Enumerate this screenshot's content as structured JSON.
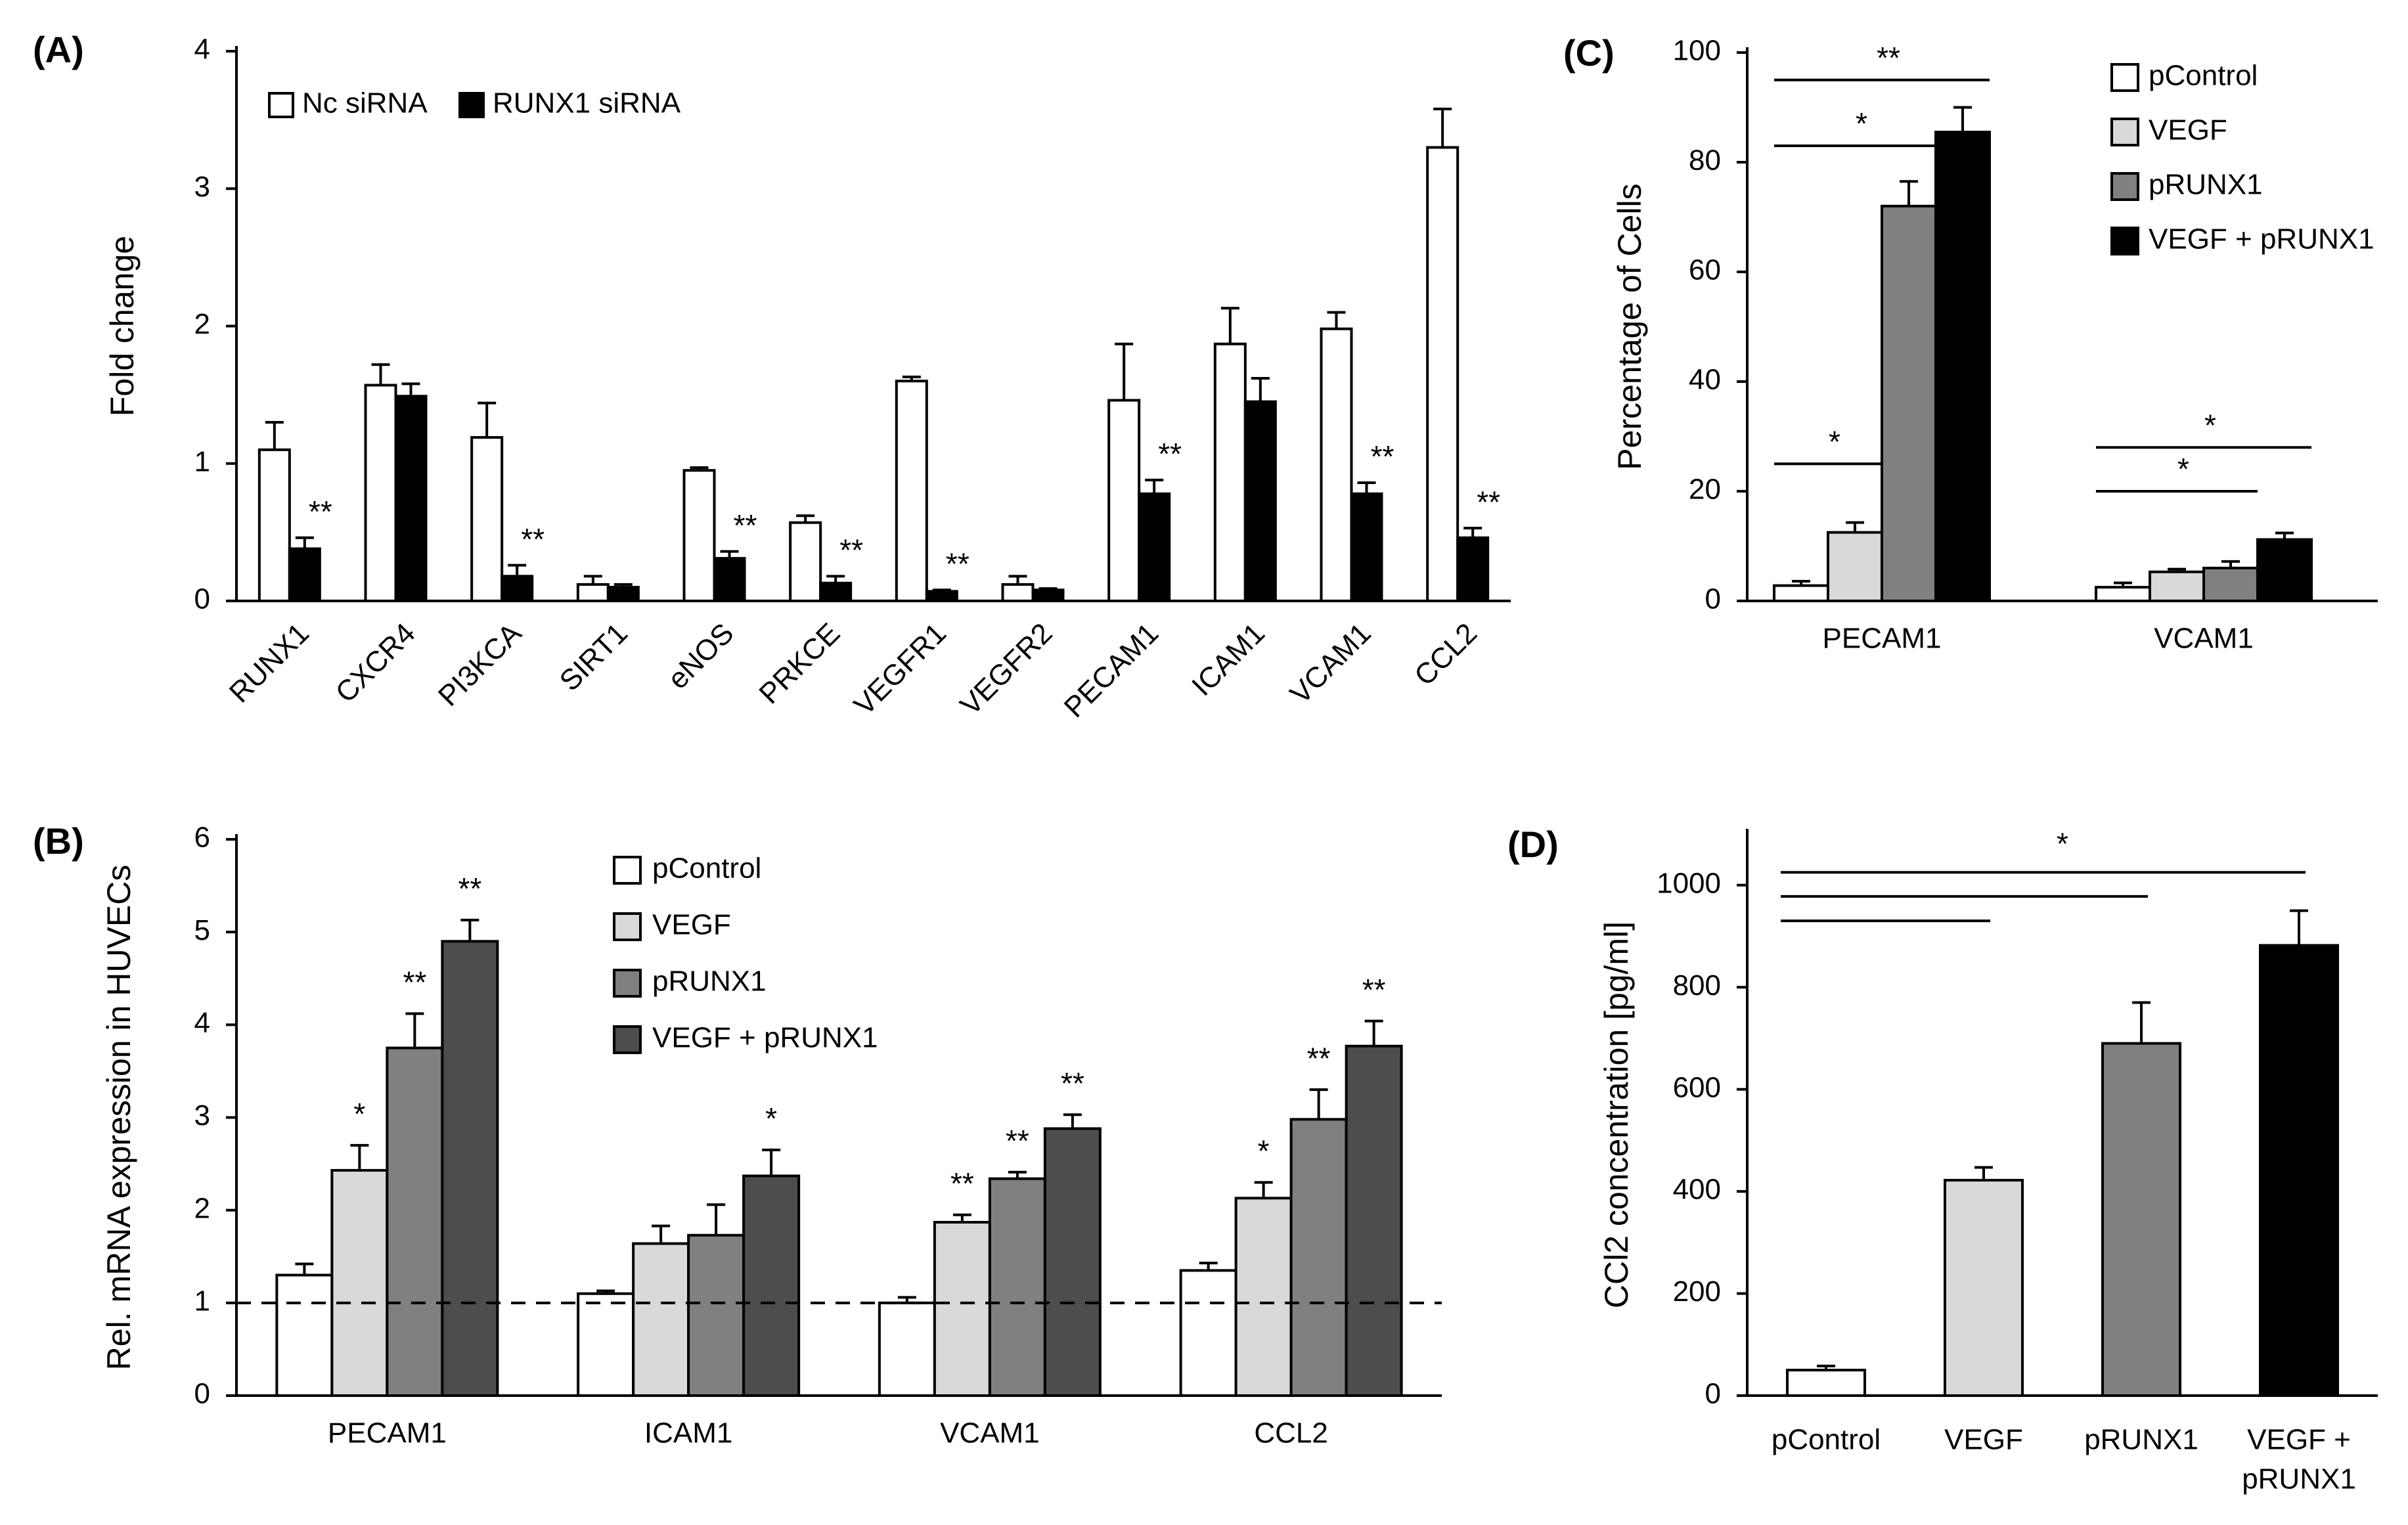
{
  "chart_data": [
    {
      "panel": "(A)",
      "type": "bar",
      "ylabel": "Fold change",
      "ylim": [
        0,
        4
      ],
      "yticks": [
        0,
        1,
        2,
        3,
        4
      ],
      "legend_placement": "top-left",
      "grid": false,
      "categories": [
        "RUNX1",
        "CXCR4",
        "PI3KCA",
        "SIRT1",
        "eNOS",
        "PRKCE",
        "VEGFR1",
        "VEGFR2",
        "PECAM1",
        "ICAM1",
        "VCAM1",
        "CCL2"
      ],
      "series": [
        {
          "name": "Nc siRNA",
          "color": "#ffffff",
          "values": [
            1.1,
            1.57,
            1.19,
            0.12,
            0.95,
            0.57,
            1.6,
            0.12,
            1.46,
            1.87,
            1.98,
            3.3
          ],
          "errors": [
            0.2,
            0.15,
            0.25,
            0.06,
            0.02,
            0.05,
            0.03,
            0.06,
            0.41,
            0.26,
            0.12,
            0.28
          ]
        },
        {
          "name": "RUNX1 siRNA",
          "color": "#000000",
          "values": [
            0.38,
            1.49,
            0.18,
            0.1,
            0.31,
            0.13,
            0.07,
            0.08,
            0.78,
            1.45,
            0.78,
            0.46
          ],
          "errors": [
            0.08,
            0.09,
            0.08,
            0.02,
            0.05,
            0.05,
            0.01,
            0.01,
            0.1,
            0.17,
            0.08,
            0.07
          ]
        }
      ],
      "annotations": [
        {
          "category": "RUNX1",
          "series": 1,
          "text": "**"
        },
        {
          "category": "PI3KCA",
          "series": 1,
          "text": "**"
        },
        {
          "category": "eNOS",
          "series": 1,
          "text": "**"
        },
        {
          "category": "PRKCE",
          "series": 1,
          "text": "**"
        },
        {
          "category": "VEGFR1",
          "series": 1,
          "text": "**"
        },
        {
          "category": "PECAM1",
          "series": 1,
          "text": "**"
        },
        {
          "category": "VCAM1",
          "series": 1,
          "text": "**"
        },
        {
          "category": "CCL2",
          "series": 1,
          "text": "**"
        }
      ]
    },
    {
      "panel": "(B)",
      "type": "bar",
      "ylabel": "Rel. mRNA expression in HUVECs",
      "ylim": [
        0,
        6
      ],
      "yticks": [
        0,
        1,
        2,
        3,
        4,
        5,
        6
      ],
      "legend_placement": "top-center",
      "grid": false,
      "reference_line": 1,
      "categories": [
        "PECAM1",
        "ICAM1",
        "VCAM1",
        "CCL2"
      ],
      "series": [
        {
          "name": "pControl",
          "color": "#ffffff",
          "values": [
            1.3,
            1.1,
            1.0,
            1.35
          ],
          "errors": [
            0.12,
            0.03,
            0.06,
            0.08
          ]
        },
        {
          "name": "VEGF",
          "color": "#d9d9d9",
          "values": [
            2.43,
            1.64,
            1.87,
            2.13
          ],
          "errors": [
            0.27,
            0.19,
            0.08,
            0.17
          ]
        },
        {
          "name": "pRUNX1",
          "color": "#808080",
          "values": [
            3.75,
            1.73,
            2.34,
            2.98
          ],
          "errors": [
            0.37,
            0.33,
            0.07,
            0.32
          ]
        },
        {
          "name": "VEGF + pRUNX1",
          "color": "#4d4d4d",
          "values": [
            4.9,
            2.37,
            2.88,
            3.77
          ],
          "errors": [
            0.23,
            0.28,
            0.15,
            0.27
          ]
        }
      ],
      "annotations": [
        {
          "category": "PECAM1",
          "series": 1,
          "text": "*"
        },
        {
          "category": "PECAM1",
          "series": 2,
          "text": "**"
        },
        {
          "category": "PECAM1",
          "series": 3,
          "text": "**"
        },
        {
          "category": "ICAM1",
          "series": 3,
          "text": "*"
        },
        {
          "category": "VCAM1",
          "series": 1,
          "text": "**"
        },
        {
          "category": "VCAM1",
          "series": 2,
          "text": "**"
        },
        {
          "category": "VCAM1",
          "series": 3,
          "text": "**"
        },
        {
          "category": "CCL2",
          "series": 1,
          "text": "*"
        },
        {
          "category": "CCL2",
          "series": 2,
          "text": "**"
        },
        {
          "category": "CCL2",
          "series": 3,
          "text": "**"
        }
      ]
    },
    {
      "panel": "(C)",
      "type": "bar",
      "ylabel": "Percentage of Cells",
      "ylim": [
        0,
        100
      ],
      "yticks": [
        0,
        20,
        40,
        60,
        80,
        100
      ],
      "legend_placement": "top-right",
      "grid": false,
      "categories": [
        "PECAM1",
        "VCAM1"
      ],
      "series": [
        {
          "name": "pControl",
          "color": "#ffffff",
          "values": [
            2.8,
            2.5
          ],
          "errors": [
            0.8,
            0.8
          ]
        },
        {
          "name": "VEGF",
          "color": "#d9d9d9",
          "values": [
            12.5,
            5.3
          ],
          "errors": [
            1.8,
            0.5
          ]
        },
        {
          "name": "pRUNX1",
          "color": "#808080",
          "values": [
            72,
            6
          ],
          "errors": [
            4.5,
            1.2
          ]
        },
        {
          "name": "VEGF + pRUNX1",
          "color": "#000000",
          "values": [
            85.5,
            11.2
          ],
          "errors": [
            4.5,
            1.2
          ]
        }
      ],
      "significance": [
        {
          "group": "PECAM1",
          "from": 0,
          "to": 1,
          "text": "*",
          "level": 25
        },
        {
          "group": "PECAM1",
          "from": 0,
          "to": 2,
          "text": "*",
          "level": 83
        },
        {
          "group": "PECAM1",
          "from": 0,
          "to": 3,
          "text": "**",
          "level": 95
        },
        {
          "group": "VCAM1",
          "from": 0,
          "to": 2,
          "text": "*",
          "level": 20
        },
        {
          "group": "VCAM1",
          "from": 0,
          "to": 3,
          "text": "*",
          "level": 28
        }
      ]
    },
    {
      "panel": "(D)",
      "type": "bar",
      "ylabel": "CCl2 concentration [pg/ml]",
      "ylim": [
        0,
        1100
      ],
      "yticks": [
        0,
        200,
        400,
        600,
        800,
        1000
      ],
      "grid": false,
      "categories": [
        [
          "pControl"
        ],
        [
          "VEGF"
        ],
        [
          "pRUNX1"
        ],
        [
          "VEGF +",
          "pRUNX1"
        ]
      ],
      "values": [
        50,
        422,
        690,
        882
      ],
      "errors": [
        8,
        25,
        80,
        68
      ],
      "colors": [
        "#ffffff",
        "#d9d9d9",
        "#808080",
        "#000000"
      ],
      "significance": [
        {
          "from": 0,
          "to": 1,
          "level": 930
        },
        {
          "from": 0,
          "to": 2,
          "level": 978
        },
        {
          "from": 0,
          "to": 3,
          "level": 1025
        }
      ],
      "significance_label": "*"
    }
  ]
}
